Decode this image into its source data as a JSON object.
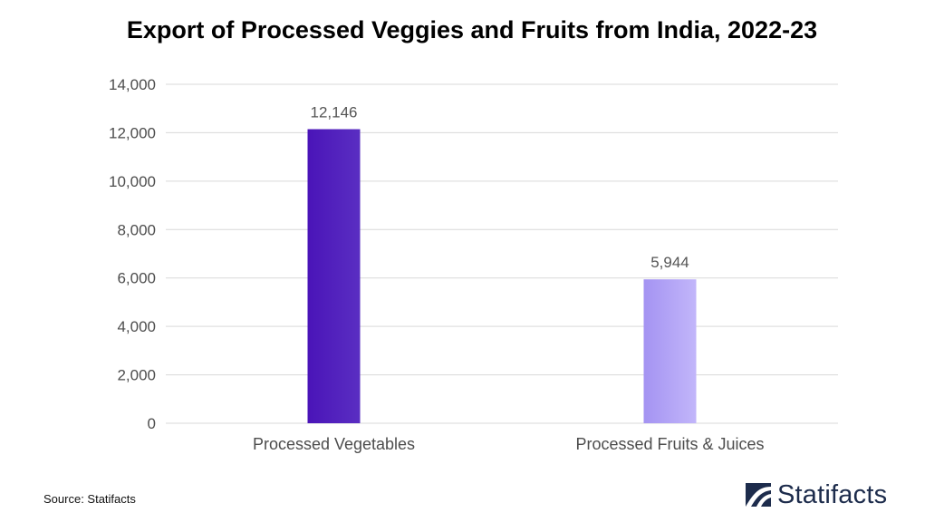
{
  "chart_data": {
    "type": "bar",
    "title": "Export of Processed Veggies and Fruits from India, 2022-23",
    "categories": [
      "Processed Vegetables",
      "Processed Fruits & Juices"
    ],
    "values": [
      12146,
      5944
    ],
    "data_labels": [
      "12,146",
      "5,944"
    ],
    "ylim": [
      0,
      14000
    ],
    "yticks": [
      0,
      2000,
      4000,
      6000,
      8000,
      10000,
      12000,
      14000
    ],
    "ytick_labels": [
      "0",
      "2,000",
      "4,000",
      "6,000",
      "8,000",
      "10,000",
      "12,000",
      "14,000"
    ],
    "xlabel": "",
    "ylabel": "",
    "grid": true,
    "legend": "none",
    "colors": {
      "bar_1_start": "#4a14b8",
      "bar_1_end": "#5a2ec2",
      "bar_2_start": "#a493f2",
      "bar_2_end": "#c2b6fa",
      "grid": "#d9d9d9",
      "tick_text": "#4d4d4d",
      "label_text": "#555555"
    }
  },
  "footer": {
    "source": "Source: Statifacts",
    "brand": "Statifacts",
    "brand_icon": "statifacts-logo-icon"
  }
}
